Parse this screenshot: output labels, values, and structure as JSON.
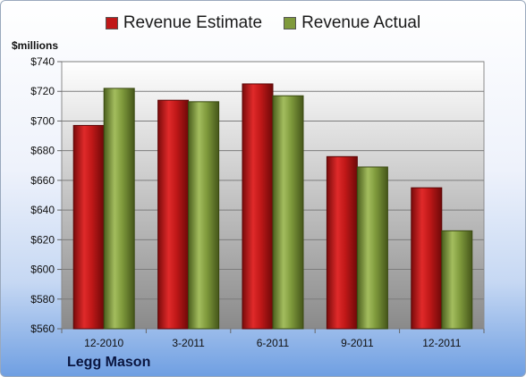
{
  "legend": {
    "estimate_label": "Revenue Estimate",
    "actual_label": "Revenue Actual"
  },
  "unit_label": "$millions",
  "company": "Legg Mason",
  "colors": {
    "estimate": "#c01818",
    "actual": "#7f9a3c",
    "plot_bg_top": "#ffffff",
    "plot_bg_bottom": "#8a8a8a"
  },
  "chart_data": {
    "type": "bar",
    "categories": [
      "12-2010",
      "3-2011",
      "6-2011",
      "9-2011",
      "12-2011"
    ],
    "series": [
      {
        "name": "Revenue Estimate",
        "values": [
          697,
          714,
          725,
          676,
          655
        ]
      },
      {
        "name": "Revenue Actual",
        "values": [
          722,
          713,
          717,
          669,
          626
        ]
      }
    ],
    "ylim": [
      560,
      740
    ],
    "yticks": [
      560,
      580,
      600,
      620,
      640,
      660,
      680,
      700,
      720,
      740
    ],
    "ytick_labels": [
      "$560",
      "$580",
      "$600",
      "$620",
      "$640",
      "$660",
      "$680",
      "$700",
      "$720",
      "$740"
    ],
    "ylabel": "$millions",
    "xlabel": "",
    "grid": true,
    "legend_position": "top"
  }
}
